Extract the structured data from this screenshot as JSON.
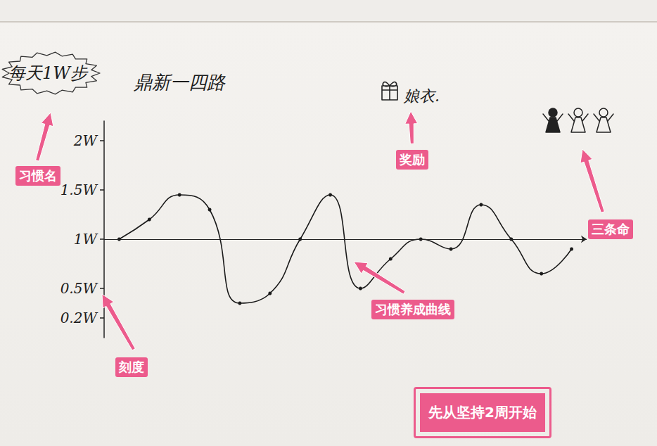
{
  "chart_data": {
    "type": "line",
    "title": "每天1W步",
    "subtitle": "鼎新一四路",
    "reward": "娘衣.",
    "categories": [
      null,
      null,
      null,
      null,
      null,
      null,
      null,
      null,
      null,
      null,
      null,
      null,
      null,
      null,
      null,
      null
    ],
    "values": [
      10000,
      12000,
      14500,
      13000,
      3500,
      4500,
      10000,
      14500,
      5000,
      8000,
      10000,
      9000,
      13500,
      10000,
      6500,
      9000
    ],
    "color": "#1a1a1a",
    "marker": "circle",
    "line_style": "smooth",
    "ylim": [
      0,
      22000
    ],
    "yticks": [
      {
        "value": 2000,
        "label": "0.2W"
      },
      {
        "value": 5000,
        "label": "0.5W"
      },
      {
        "value": 10000,
        "label": "1W"
      },
      {
        "value": 15000,
        "label": "1.5W"
      },
      {
        "value": 20000,
        "label": "2W"
      }
    ],
    "reference_line": 10000,
    "tick_labels": "y",
    "grid": false,
    "annotations": [
      "习惯名",
      "奖励",
      "三条命",
      "习惯养成曲线",
      "刻度",
      "先从坚持2周开始"
    ]
  }
}
